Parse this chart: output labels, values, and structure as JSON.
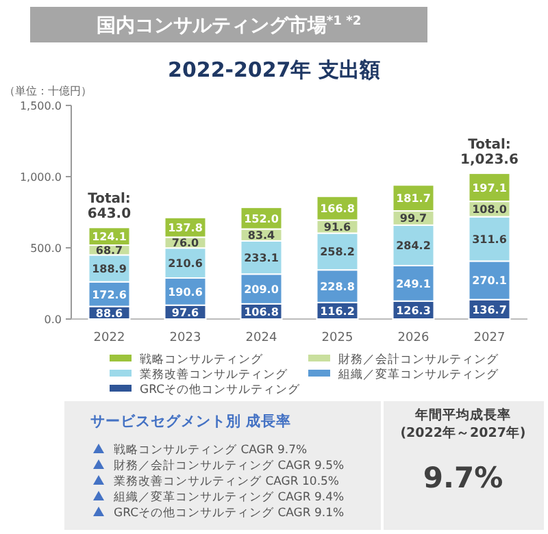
{
  "chart_data": {
    "type": "bar",
    "stacked": true,
    "title": "国内コンサルティング市場$^{*1 *2}$",
    "subtitle": "2022-2027年 支出額",
    "ylabel": "（単位：十億円）",
    "categories": [
      "2022",
      "2023",
      "2024",
      "2025",
      "2026",
      "2027"
    ],
    "series": [
      {
        "name": "GRCその他コンサルティング",
        "color": "#2f5597",
        "values": [
          88.6,
          97.6,
          106.8,
          116.2,
          126.3,
          136.7
        ],
        "value_labels": [
          "88.6",
          "97.6",
          "106.8",
          "116.2",
          "126.3",
          "136.7"
        ]
      },
      {
        "name": "組織／変革コンサルティング",
        "color": "#5b9bd5",
        "values": [
          172.6,
          190.6,
          209.0,
          228.8,
          249.1,
          270.1
        ],
        "value_labels": [
          "172.6",
          "190.6",
          "209.0",
          "228.8",
          "249.1",
          "270.1"
        ]
      },
      {
        "name": "業務改善コンサルティング",
        "color": "#9dd9ea",
        "values": [
          188.9,
          210.6,
          233.1,
          258.2,
          284.2,
          311.6
        ],
        "value_labels": [
          "188.9",
          "210.6",
          "233.1",
          "258.2",
          "284.2",
          "311.6"
        ]
      },
      {
        "name": "財務／会計コンサルティング",
        "color": "#c9df9e",
        "values": [
          68.7,
          76.0,
          83.4,
          91.6,
          99.7,
          108.0
        ],
        "value_labels": [
          "68.7",
          "76.0",
          "83.4",
          "91.6",
          "99.7",
          "108.0"
        ]
      },
      {
        "name": "戦略コンサルティング",
        "color": "#9cc33b",
        "values": [
          124.1,
          137.8,
          152.0,
          166.8,
          181.7,
          197.1
        ],
        "value_labels": [
          "124.1",
          "137.8",
          "152.0",
          "166.8",
          "181.7",
          "197.1"
        ]
      }
    ],
    "totals": [
      "Total:\n643.0",
      null,
      null,
      null,
      null,
      "Total:\n1,023.6"
    ],
    "ylim": [
      0,
      1500
    ],
    "yticks": [
      {
        "value": 0,
        "label": "0.0"
      },
      {
        "value": 500,
        "label": "500.0"
      },
      {
        "value": 1000,
        "label": "1,000.0"
      },
      {
        "value": 1500,
        "label": "1,500.0"
      }
    ],
    "grid": false,
    "legend": "bottom",
    "annotations": [
      "サービスセグメント別 成長率",
      "戦略コンサルティング CAGR 9.7%",
      "財務／会計コンサルティング CAGR 9.5%",
      "業務改善コンサルティング CAGR 10.5%",
      "組織／変革コンサルティング CAGR 9.4%",
      "GRCその他コンサルティング CAGR 9.1%",
      "年間平均成長率",
      "(2022年～2027年)",
      "9.7%"
    ]
  }
}
